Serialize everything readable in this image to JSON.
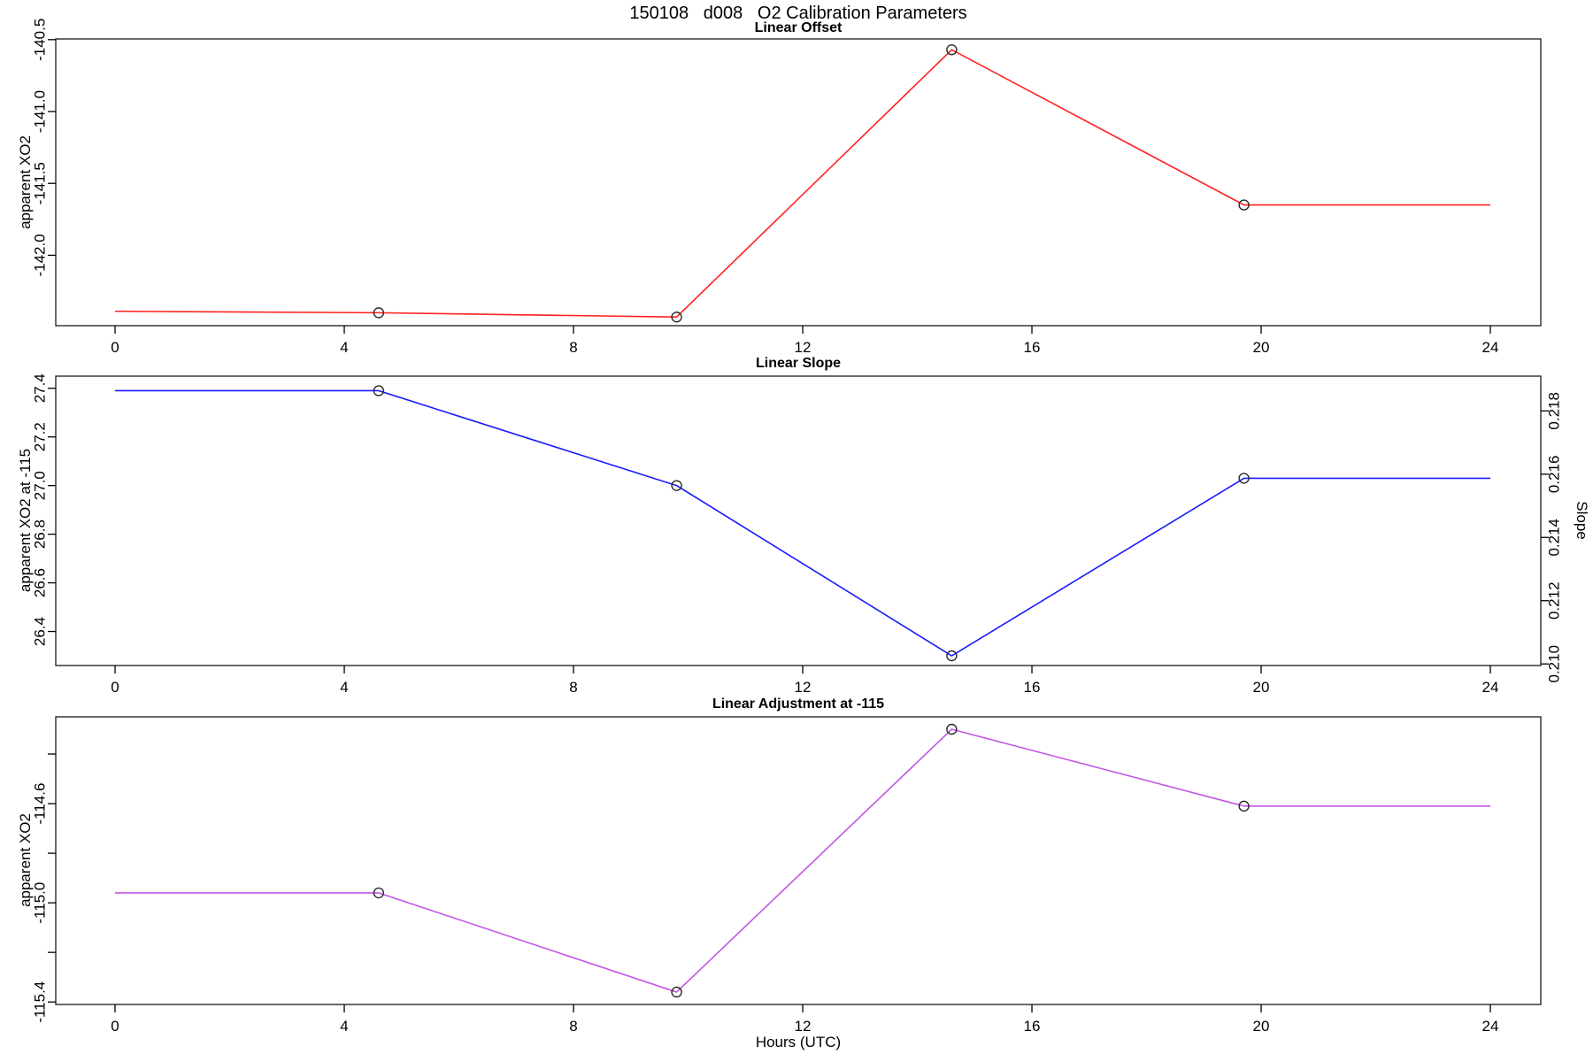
{
  "figure": {
    "title": "150108   d008   O2 Calibration Parameters",
    "xlabel": "Hours (UTC)",
    "background": "#ffffff",
    "frame_color": "#1a1a1a",
    "marker_color": "#2b2b2b"
  },
  "chart_data": [
    {
      "type": "line",
      "title": "Linear Offset",
      "ylabel": "apparent XO2",
      "color": "#ff2020",
      "marker": "open-circle",
      "x": [
        0,
        4.6,
        9.8,
        14.6,
        19.7,
        24
      ],
      "y": [
        -142.39,
        -142.4,
        -142.43,
        -140.57,
        -141.65,
        -141.65
      ],
      "marker_indices": [
        1,
        2,
        3,
        4
      ],
      "xlim": [
        -1.035,
        24.88
      ],
      "ylim": [
        -142.49,
        -140.495
      ],
      "xticks": [
        0,
        4,
        8,
        12,
        16,
        20,
        24
      ],
      "xtick_labels": [
        "0",
        "4",
        "8",
        "12",
        "16",
        "20",
        "24"
      ],
      "yticks": [
        -140.5,
        -141.0,
        -141.5,
        -142.0
      ],
      "ytick_labels": [
        "-140.5",
        "-141.0",
        "-141.5",
        "-142.0"
      ],
      "grid": false,
      "legend": "none"
    },
    {
      "type": "line",
      "title": "Linear Slope",
      "ylabel": "apparent XO2 at -115",
      "color": "#1a1aff",
      "marker": "open-circle",
      "x": [
        0,
        4.6,
        9.8,
        14.6,
        19.7,
        24
      ],
      "y": [
        27.39,
        27.39,
        27.0,
        26.3,
        27.03,
        27.03
      ],
      "y_right_slope": [
        0.2187,
        0.2187,
        0.2159,
        0.2108,
        0.2161,
        0.2161
      ],
      "marker_indices": [
        1,
        2,
        3,
        4
      ],
      "xlim": [
        -1.035,
        24.88
      ],
      "ylim": [
        26.26,
        27.45
      ],
      "xticks": [
        0,
        4,
        8,
        12,
        16,
        20,
        24
      ],
      "xtick_labels": [
        "0",
        "4",
        "8",
        "12",
        "16",
        "20",
        "24"
      ],
      "yticks": [
        27.4,
        27.2,
        27.0,
        26.8,
        26.6,
        26.4
      ],
      "ytick_labels": [
        "27.4",
        "27.2",
        "27.0",
        "26.8",
        "26.6",
        "26.4"
      ],
      "right_axis": {
        "label": "Slope",
        "ylim": [
          0.20995,
          0.2191
        ],
        "yticks": [
          0.218,
          0.216,
          0.214,
          0.212,
          0.21
        ],
        "ytick_labels": [
          "0.218",
          "0.216",
          "0.214",
          "0.212",
          "0.210"
        ]
      },
      "grid": false,
      "legend": "none"
    },
    {
      "type": "line",
      "title": "Linear Adjustment at -115",
      "ylabel": "apparent XO2",
      "color": "#c356e3",
      "marker": "open-circle",
      "x": [
        0,
        4.6,
        9.8,
        14.6,
        19.7,
        24
      ],
      "y": [
        -114.96,
        -114.96,
        -115.36,
        -114.3,
        -114.61,
        -114.61
      ],
      "marker_indices": [
        1,
        2,
        3,
        4
      ],
      "xlim": [
        -1.035,
        24.88
      ],
      "ylim": [
        -115.41,
        -114.25
      ],
      "xticks": [
        0,
        4,
        8,
        12,
        16,
        20,
        24
      ],
      "xtick_labels": [
        "0",
        "4",
        "8",
        "12",
        "16",
        "20",
        "24"
      ],
      "yticks": [
        -114.4,
        -114.6,
        -114.8,
        -115.0,
        -115.2,
        -115.4
      ],
      "ytick_labels": [
        "",
        "-114.6",
        "",
        "-115.0",
        "",
        "-115.4"
      ],
      "grid": false,
      "legend": "none"
    }
  ]
}
